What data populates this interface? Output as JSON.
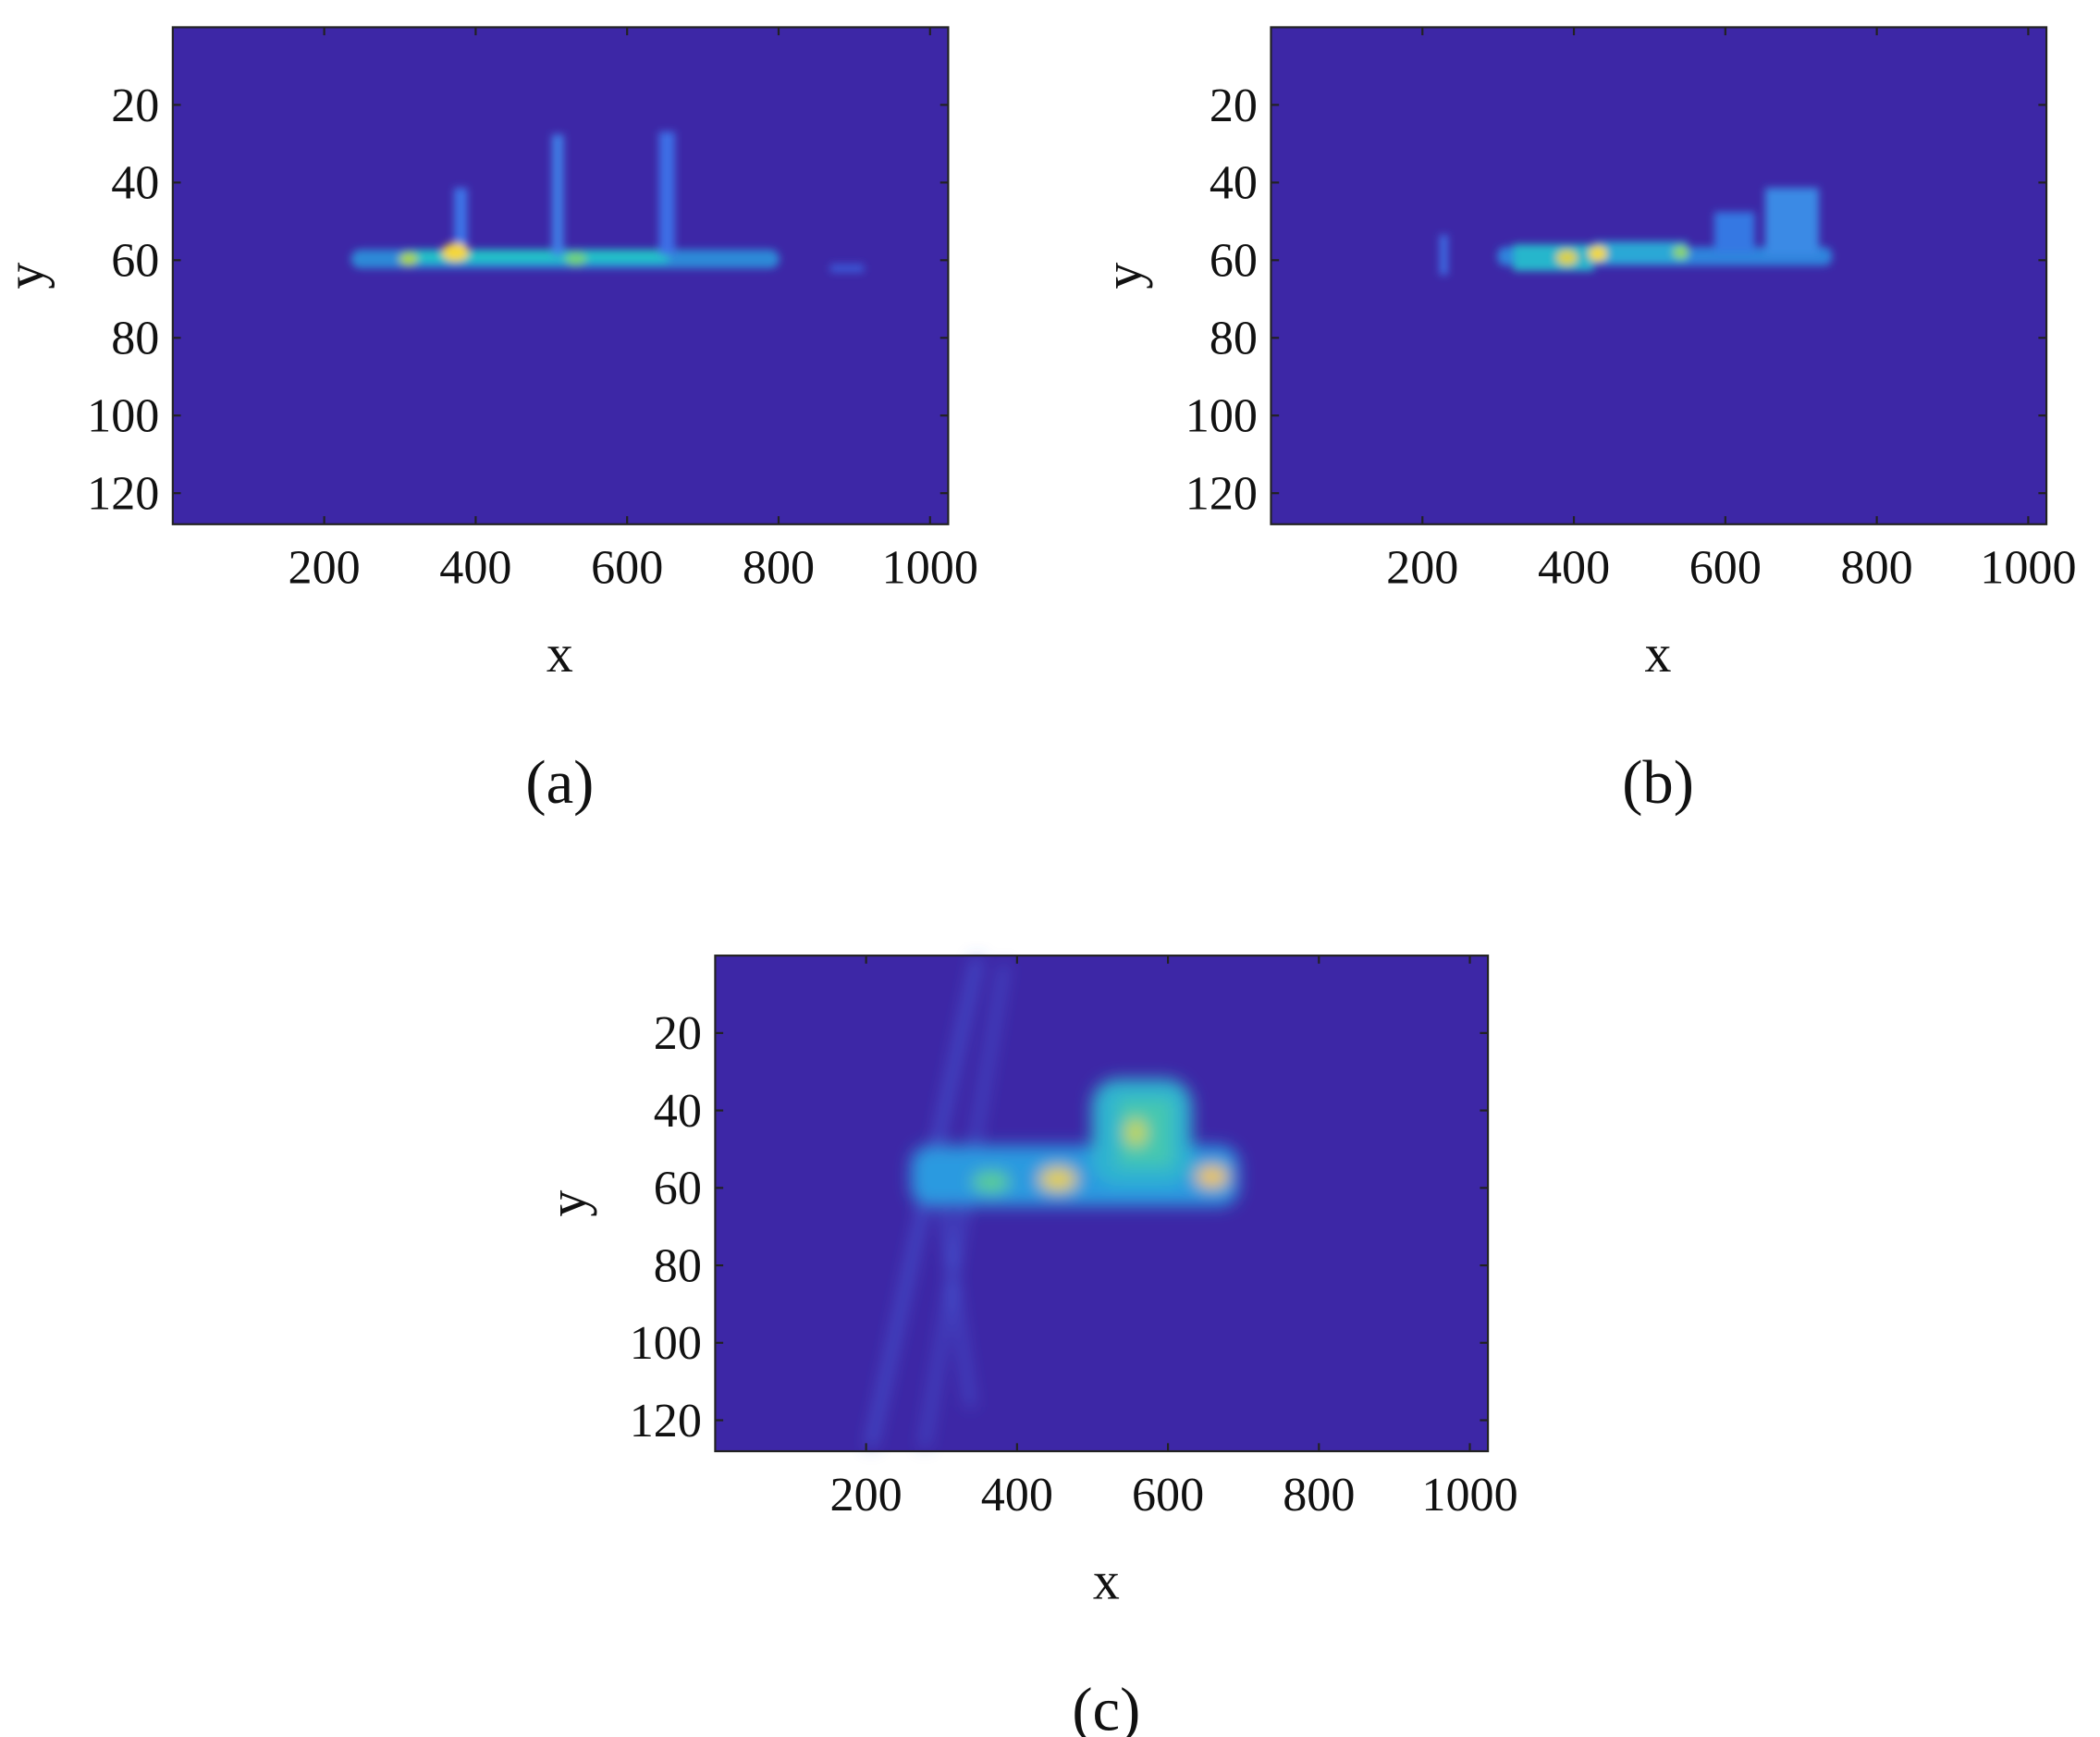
{
  "chart_data": [
    {
      "type": "heatmap",
      "caption": "(a)",
      "xlabel": "x",
      "ylabel": "y",
      "color": "#3d27a6",
      "xlim": [
        0,
        1024
      ],
      "ylim": [
        0,
        128
      ],
      "y_reversed": true,
      "xticks": [
        200,
        400,
        600,
        800,
        1000
      ],
      "yticks": [
        20,
        40,
        60,
        80,
        100,
        120
      ]
    },
    {
      "type": "heatmap",
      "caption": "(b)",
      "xlabel": "x",
      "ylabel": "y",
      "color": "#3d27a6",
      "xlim": [
        0,
        1024
      ],
      "ylim": [
        0,
        128
      ],
      "y_reversed": true,
      "xticks": [
        200,
        400,
        600,
        800,
        1000
      ],
      "yticks": [
        20,
        40,
        60,
        80,
        100,
        120
      ]
    },
    {
      "type": "heatmap",
      "caption": "(c)",
      "xlabel": "x",
      "ylabel": "y",
      "color": "#3d27a6",
      "xlim": [
        0,
        1024
      ],
      "ylim": [
        0,
        128
      ],
      "y_reversed": true,
      "xticks": [
        200,
        400,
        600,
        800,
        1000
      ],
      "yticks": [
        20,
        40,
        60,
        80,
        100,
        120
      ]
    }
  ]
}
